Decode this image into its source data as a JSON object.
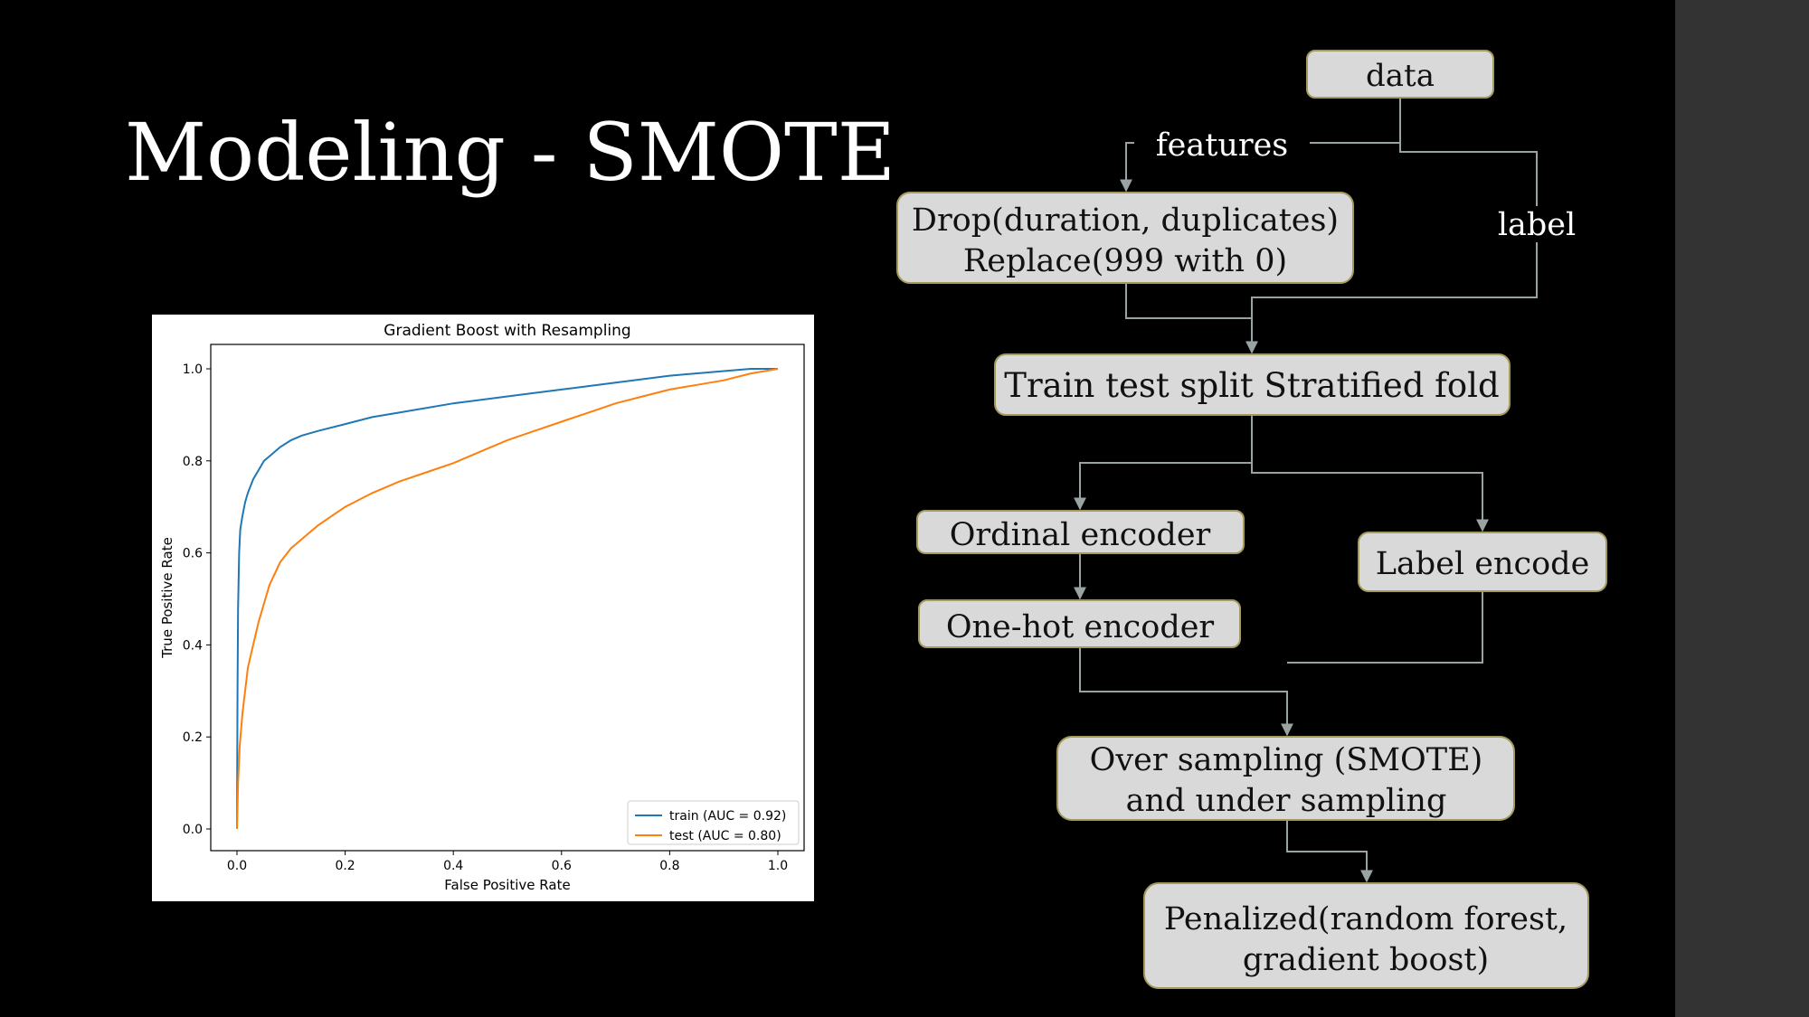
{
  "slide": {
    "title": "Modeling - SMOTE"
  },
  "flowchart": {
    "data": "data",
    "features": "features",
    "label": "label",
    "drop_line1": "Drop(duration, duplicates)",
    "drop_line2": "Replace(999 with 0)",
    "split": "Train test split Stratified fold",
    "ordinal": "Ordinal encoder",
    "onehot": "One-hot encoder",
    "label_encode": "Label encode",
    "sampling_line1": "Over sampling (SMOTE)",
    "sampling_line2": "and under sampling",
    "model_line1": "Penalized(random forest,",
    "model_line2": "gradient boost)"
  },
  "chart_data": {
    "type": "line",
    "title": "Gradient Boost with Resampling",
    "xlabel": "False Positive Rate",
    "ylabel": "True Positive Rate",
    "xlim": [
      0,
      1
    ],
    "ylim": [
      0,
      1
    ],
    "xticks": [
      "0.0",
      "0.2",
      "0.4",
      "0.6",
      "0.8",
      "1.0"
    ],
    "yticks": [
      "0.0",
      "0.2",
      "0.4",
      "0.6",
      "0.8",
      "1.0"
    ],
    "legend_position": "lower-right",
    "grid": false,
    "series": [
      {
        "name": "train (AUC = 0.92)",
        "color": "#1f77b4",
        "x": [
          0,
          0.001,
          0.002,
          0.004,
          0.006,
          0.01,
          0.015,
          0.02,
          0.03,
          0.04,
          0.05,
          0.06,
          0.08,
          0.1,
          0.12,
          0.15,
          0.2,
          0.25,
          0.3,
          0.4,
          0.5,
          0.6,
          0.7,
          0.8,
          0.9,
          0.95,
          1.0
        ],
        "y": [
          0,
          0.3,
          0.48,
          0.6,
          0.65,
          0.68,
          0.71,
          0.73,
          0.76,
          0.78,
          0.8,
          0.81,
          0.83,
          0.845,
          0.855,
          0.865,
          0.88,
          0.895,
          0.905,
          0.925,
          0.94,
          0.955,
          0.97,
          0.985,
          0.995,
          1.0,
          1.0
        ]
      },
      {
        "name": "test (AUC = 0.80)",
        "color": "#ff7f0e",
        "x": [
          0,
          0.002,
          0.005,
          0.01,
          0.015,
          0.02,
          0.03,
          0.04,
          0.05,
          0.06,
          0.08,
          0.1,
          0.12,
          0.15,
          0.2,
          0.25,
          0.3,
          0.35,
          0.4,
          0.45,
          0.5,
          0.55,
          0.6,
          0.65,
          0.7,
          0.75,
          0.8,
          0.85,
          0.9,
          0.95,
          1.0
        ],
        "y": [
          0,
          0.1,
          0.18,
          0.25,
          0.3,
          0.35,
          0.4,
          0.45,
          0.49,
          0.53,
          0.58,
          0.61,
          0.63,
          0.66,
          0.7,
          0.73,
          0.755,
          0.775,
          0.795,
          0.82,
          0.845,
          0.865,
          0.885,
          0.905,
          0.925,
          0.94,
          0.955,
          0.965,
          0.975,
          0.99,
          1.0
        ]
      }
    ]
  }
}
